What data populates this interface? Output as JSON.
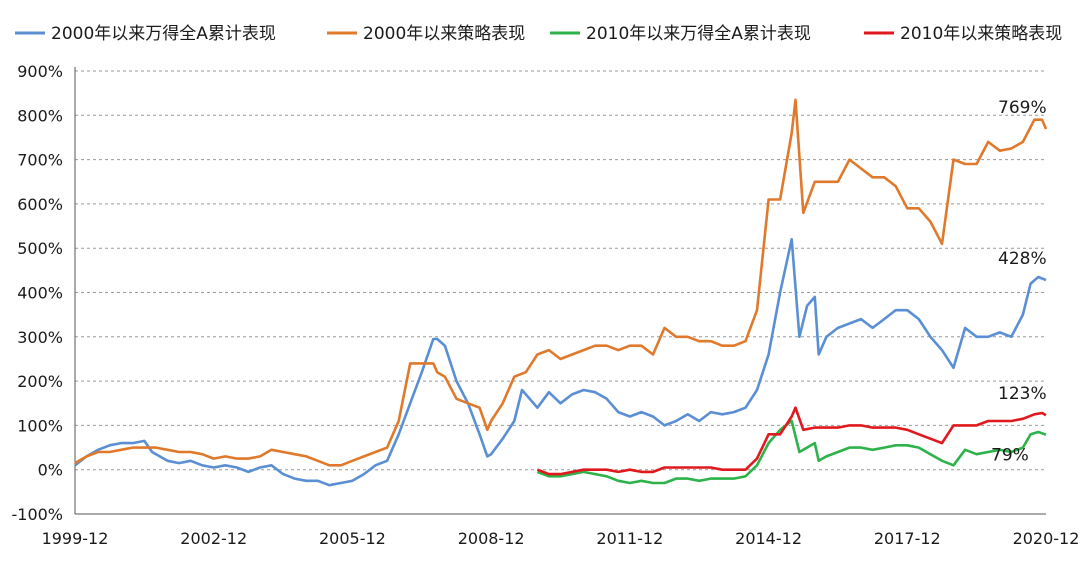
{
  "chart_data": {
    "type": "line",
    "title": "",
    "xlabel": "",
    "ylabel": "",
    "ylim": [
      -100,
      900
    ],
    "y_unit": "%",
    "yticks": [
      "900%",
      "800%",
      "700%",
      "600%",
      "500%",
      "400%",
      "300%",
      "200%",
      "100%",
      "0%",
      "-100%"
    ],
    "xticks": [
      "1999-12",
      "2002-12",
      "2005-12",
      "2008-12",
      "2011-12",
      "2014-12",
      "2017-12",
      "2020-12"
    ],
    "x_range": [
      "1999-12",
      "2020-12"
    ],
    "grid": "horizontal-dashed",
    "legend_position": "top",
    "end_labels": [
      "769%",
      "428%",
      "123%",
      "79%"
    ],
    "series": [
      {
        "name": "2000年以来万得全A累计表现",
        "color": "#5b8fd4",
        "start": "1999-12",
        "points": [
          [
            "1999-12",
            10
          ],
          [
            "2000-03",
            30
          ],
          [
            "2000-06",
            45
          ],
          [
            "2000-09",
            55
          ],
          [
            "2000-12",
            60
          ],
          [
            "2001-03",
            60
          ],
          [
            "2001-06",
            65
          ],
          [
            "2001-08",
            40
          ],
          [
            "2001-12",
            20
          ],
          [
            "2002-03",
            15
          ],
          [
            "2002-06",
            20
          ],
          [
            "2002-09",
            10
          ],
          [
            "2002-12",
            5
          ],
          [
            "2003-03",
            10
          ],
          [
            "2003-06",
            5
          ],
          [
            "2003-09",
            -5
          ],
          [
            "2003-12",
            5
          ],
          [
            "2004-03",
            10
          ],
          [
            "2004-06",
            -10
          ],
          [
            "2004-09",
            -20
          ],
          [
            "2004-12",
            -25
          ],
          [
            "2005-03",
            -25
          ],
          [
            "2005-06",
            -35
          ],
          [
            "2005-09",
            -30
          ],
          [
            "2005-12",
            -25
          ],
          [
            "2006-03",
            -10
          ],
          [
            "2006-06",
            10
          ],
          [
            "2006-09",
            20
          ],
          [
            "2006-12",
            80
          ],
          [
            "2007-03",
            150
          ],
          [
            "2007-06",
            220
          ],
          [
            "2007-09",
            295
          ],
          [
            "2007-10",
            295
          ],
          [
            "2007-12",
            280
          ],
          [
            "2008-03",
            200
          ],
          [
            "2008-06",
            150
          ],
          [
            "2008-09",
            80
          ],
          [
            "2008-11",
            30
          ],
          [
            "2008-12",
            35
          ],
          [
            "2009-03",
            70
          ],
          [
            "2009-06",
            110
          ],
          [
            "2009-08",
            180
          ],
          [
            "2009-12",
            140
          ],
          [
            "2010-03",
            175
          ],
          [
            "2010-06",
            150
          ],
          [
            "2010-09",
            170
          ],
          [
            "2010-12",
            180
          ],
          [
            "2011-03",
            175
          ],
          [
            "2011-06",
            160
          ],
          [
            "2011-09",
            130
          ],
          [
            "2011-12",
            120
          ],
          [
            "2012-03",
            130
          ],
          [
            "2012-06",
            120
          ],
          [
            "2012-09",
            100
          ],
          [
            "2012-12",
            110
          ],
          [
            "2013-03",
            125
          ],
          [
            "2013-06",
            110
          ],
          [
            "2013-09",
            130
          ],
          [
            "2013-12",
            125
          ],
          [
            "2014-03",
            130
          ],
          [
            "2014-06",
            140
          ],
          [
            "2014-09",
            180
          ],
          [
            "2014-12",
            260
          ],
          [
            "2015-03",
            400
          ],
          [
            "2015-06",
            520
          ],
          [
            "2015-08",
            300
          ],
          [
            "2015-10",
            370
          ],
          [
            "2015-12",
            390
          ],
          [
            "2016-01",
            260
          ],
          [
            "2016-03",
            300
          ],
          [
            "2016-06",
            320
          ],
          [
            "2016-09",
            330
          ],
          [
            "2016-12",
            340
          ],
          [
            "2017-03",
            320
          ],
          [
            "2017-06",
            340
          ],
          [
            "2017-09",
            360
          ],
          [
            "2017-12",
            360
          ],
          [
            "2018-03",
            340
          ],
          [
            "2018-06",
            300
          ],
          [
            "2018-09",
            270
          ],
          [
            "2018-12",
            230
          ],
          [
            "2019-03",
            320
          ],
          [
            "2019-06",
            300
          ],
          [
            "2019-09",
            300
          ],
          [
            "2019-12",
            310
          ],
          [
            "2020-03",
            300
          ],
          [
            "2020-06",
            350
          ],
          [
            "2020-08",
            420
          ],
          [
            "2020-10",
            435
          ],
          [
            "2020-12",
            428
          ]
        ]
      },
      {
        "name": "2000年以来策略表现",
        "color": "#e0792b",
        "start": "1999-12",
        "points": [
          [
            "1999-12",
            15
          ],
          [
            "2000-03",
            30
          ],
          [
            "2000-06",
            40
          ],
          [
            "2000-09",
            40
          ],
          [
            "2000-12",
            45
          ],
          [
            "2001-03",
            50
          ],
          [
            "2001-06",
            50
          ],
          [
            "2001-09",
            50
          ],
          [
            "2001-12",
            45
          ],
          [
            "2002-03",
            40
          ],
          [
            "2002-06",
            40
          ],
          [
            "2002-09",
            35
          ],
          [
            "2002-12",
            25
          ],
          [
            "2003-03",
            30
          ],
          [
            "2003-06",
            25
          ],
          [
            "2003-09",
            25
          ],
          [
            "2003-12",
            30
          ],
          [
            "2004-03",
            45
          ],
          [
            "2004-06",
            40
          ],
          [
            "2004-09",
            35
          ],
          [
            "2004-12",
            30
          ],
          [
            "2005-03",
            20
          ],
          [
            "2005-06",
            10
          ],
          [
            "2005-09",
            10
          ],
          [
            "2005-12",
            20
          ],
          [
            "2006-03",
            30
          ],
          [
            "2006-06",
            40
          ],
          [
            "2006-09",
            50
          ],
          [
            "2006-12",
            110
          ],
          [
            "2007-03",
            240
          ],
          [
            "2007-06",
            240
          ],
          [
            "2007-09",
            240
          ],
          [
            "2007-10",
            220
          ],
          [
            "2007-12",
            210
          ],
          [
            "2008-03",
            160
          ],
          [
            "2008-06",
            150
          ],
          [
            "2008-09",
            140
          ],
          [
            "2008-11",
            90
          ],
          [
            "2008-12",
            110
          ],
          [
            "2009-03",
            150
          ],
          [
            "2009-06",
            210
          ],
          [
            "2009-09",
            220
          ],
          [
            "2009-12",
            260
          ],
          [
            "2010-03",
            270
          ],
          [
            "2010-06",
            250
          ],
          [
            "2010-09",
            260
          ],
          [
            "2010-12",
            270
          ],
          [
            "2011-03",
            280
          ],
          [
            "2011-06",
            280
          ],
          [
            "2011-09",
            270
          ],
          [
            "2011-12",
            280
          ],
          [
            "2012-03",
            280
          ],
          [
            "2012-06",
            260
          ],
          [
            "2012-09",
            320
          ],
          [
            "2012-12",
            300
          ],
          [
            "2013-03",
            300
          ],
          [
            "2013-06",
            290
          ],
          [
            "2013-09",
            290
          ],
          [
            "2013-12",
            280
          ],
          [
            "2014-03",
            280
          ],
          [
            "2014-06",
            290
          ],
          [
            "2014-09",
            360
          ],
          [
            "2014-12",
            610
          ],
          [
            "2015-03",
            610
          ],
          [
            "2015-06",
            760
          ],
          [
            "2015-07",
            835
          ],
          [
            "2015-09",
            580
          ],
          [
            "2015-12",
            650
          ],
          [
            "2016-03",
            650
          ],
          [
            "2016-06",
            650
          ],
          [
            "2016-09",
            700
          ],
          [
            "2016-12",
            680
          ],
          [
            "2017-03",
            660
          ],
          [
            "2017-06",
            660
          ],
          [
            "2017-09",
            640
          ],
          [
            "2017-12",
            590
          ],
          [
            "2018-03",
            590
          ],
          [
            "2018-06",
            560
          ],
          [
            "2018-09",
            510
          ],
          [
            "2018-12",
            700
          ],
          [
            "2019-03",
            690
          ],
          [
            "2019-06",
            690
          ],
          [
            "2019-09",
            740
          ],
          [
            "2019-12",
            720
          ],
          [
            "2020-03",
            725
          ],
          [
            "2020-06",
            740
          ],
          [
            "2020-09",
            790
          ],
          [
            "2020-11",
            790
          ],
          [
            "2020-12",
            769
          ]
        ]
      },
      {
        "name": "2010年以来万得全A累计表现",
        "color": "#2db34a",
        "start": "2009-12",
        "points": [
          [
            "2009-12",
            -5
          ],
          [
            "2010-03",
            -15
          ],
          [
            "2010-06",
            -15
          ],
          [
            "2010-09",
            -10
          ],
          [
            "2010-12",
            -5
          ],
          [
            "2011-03",
            -10
          ],
          [
            "2011-06",
            -15
          ],
          [
            "2011-09",
            -25
          ],
          [
            "2011-12",
            -30
          ],
          [
            "2012-03",
            -25
          ],
          [
            "2012-06",
            -30
          ],
          [
            "2012-09",
            -30
          ],
          [
            "2012-12",
            -20
          ],
          [
            "2013-03",
            -20
          ],
          [
            "2013-06",
            -25
          ],
          [
            "2013-09",
            -20
          ],
          [
            "2013-12",
            -20
          ],
          [
            "2014-03",
            -20
          ],
          [
            "2014-06",
            -15
          ],
          [
            "2014-09",
            10
          ],
          [
            "2014-12",
            60
          ],
          [
            "2015-03",
            90
          ],
          [
            "2015-06",
            110
          ],
          [
            "2015-08",
            40
          ],
          [
            "2015-12",
            60
          ],
          [
            "2016-01",
            20
          ],
          [
            "2016-03",
            30
          ],
          [
            "2016-06",
            40
          ],
          [
            "2016-09",
            50
          ],
          [
            "2016-12",
            50
          ],
          [
            "2017-03",
            45
          ],
          [
            "2017-06",
            50
          ],
          [
            "2017-09",
            55
          ],
          [
            "2017-12",
            55
          ],
          [
            "2018-03",
            50
          ],
          [
            "2018-06",
            35
          ],
          [
            "2018-09",
            20
          ],
          [
            "2018-12",
            10
          ],
          [
            "2019-03",
            45
          ],
          [
            "2019-06",
            35
          ],
          [
            "2019-09",
            40
          ],
          [
            "2019-12",
            45
          ],
          [
            "2020-03",
            40
          ],
          [
            "2020-06",
            50
          ],
          [
            "2020-08",
            80
          ],
          [
            "2020-10",
            85
          ],
          [
            "2020-12",
            79
          ]
        ]
      },
      {
        "name": "2010年以来策略表现",
        "color": "#e0191e",
        "start": "2009-12",
        "points": [
          [
            "2009-12",
            0
          ],
          [
            "2010-03",
            -10
          ],
          [
            "2010-06",
            -10
          ],
          [
            "2010-09",
            -5
          ],
          [
            "2010-12",
            0
          ],
          [
            "2011-03",
            0
          ],
          [
            "2011-06",
            0
          ],
          [
            "2011-09",
            -5
          ],
          [
            "2011-12",
            0
          ],
          [
            "2012-03",
            -5
          ],
          [
            "2012-06",
            -5
          ],
          [
            "2012-09",
            5
          ],
          [
            "2012-12",
            5
          ],
          [
            "2013-03",
            5
          ],
          [
            "2013-06",
            5
          ],
          [
            "2013-09",
            5
          ],
          [
            "2013-12",
            0
          ],
          [
            "2014-03",
            0
          ],
          [
            "2014-06",
            0
          ],
          [
            "2014-09",
            25
          ],
          [
            "2014-12",
            80
          ],
          [
            "2015-03",
            80
          ],
          [
            "2015-06",
            120
          ],
          [
            "2015-07",
            140
          ],
          [
            "2015-09",
            90
          ],
          [
            "2015-12",
            95
          ],
          [
            "2016-03",
            95
          ],
          [
            "2016-06",
            95
          ],
          [
            "2016-09",
            100
          ],
          [
            "2016-12",
            100
          ],
          [
            "2017-03",
            95
          ],
          [
            "2017-06",
            95
          ],
          [
            "2017-09",
            95
          ],
          [
            "2017-12",
            90
          ],
          [
            "2018-03",
            80
          ],
          [
            "2018-06",
            70
          ],
          [
            "2018-09",
            60
          ],
          [
            "2018-12",
            100
          ],
          [
            "2019-03",
            100
          ],
          [
            "2019-06",
            100
          ],
          [
            "2019-09",
            110
          ],
          [
            "2019-12",
            110
          ],
          [
            "2020-03",
            110
          ],
          [
            "2020-06",
            115
          ],
          [
            "2020-09",
            125
          ],
          [
            "2020-11",
            128
          ],
          [
            "2020-12",
            123
          ]
        ]
      }
    ]
  }
}
